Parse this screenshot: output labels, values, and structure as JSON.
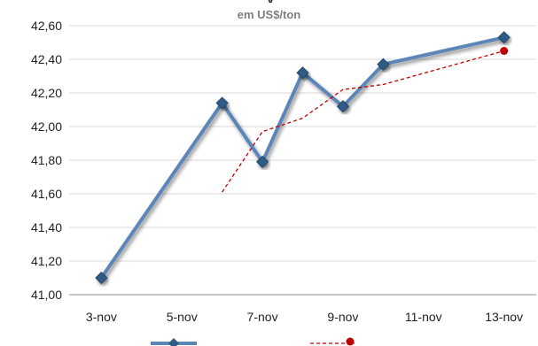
{
  "chart_data": {
    "type": "line",
    "title": "",
    "subtitle": "em US$/ton",
    "xlabel": "",
    "ylabel": "",
    "x_tick_labels": [
      "3-nov",
      "5-nov",
      "7-nov",
      "9-nov",
      "11-nov",
      "13-nov"
    ],
    "x_tick_days": [
      3,
      5,
      7,
      9,
      11,
      13
    ],
    "xlim_days": [
      2.2,
      13.8
    ],
    "y_tick_labels": [
      "41,00",
      "41,20",
      "41,40",
      "41,60",
      "41,80",
      "42,00",
      "42,20",
      "42,40",
      "42,60"
    ],
    "ylim": [
      41.0,
      42.6
    ],
    "grid": "horizontal",
    "legend": "bottom",
    "series": [
      {
        "style": "solid-diamond",
        "color": "#5b86b8",
        "x": [
          "3-nov",
          "6-nov",
          "7-nov",
          "8-nov",
          "9-nov",
          "10-nov",
          "13-nov"
        ],
        "x_days": [
          3,
          6,
          7,
          8,
          9,
          10,
          13
        ],
        "values": [
          41.1,
          42.14,
          41.79,
          42.32,
          42.12,
          42.37,
          42.53
        ]
      },
      {
        "style": "dashed",
        "color": "#c00000",
        "x": [
          "6-nov",
          "7-nov",
          "8-nov",
          "9-nov",
          "10-nov",
          "13-nov"
        ],
        "x_days": [
          6,
          7,
          8,
          9,
          10,
          13
        ],
        "values": [
          41.61,
          41.97,
          42.05,
          42.22,
          42.25,
          42.45
        ]
      }
    ]
  }
}
